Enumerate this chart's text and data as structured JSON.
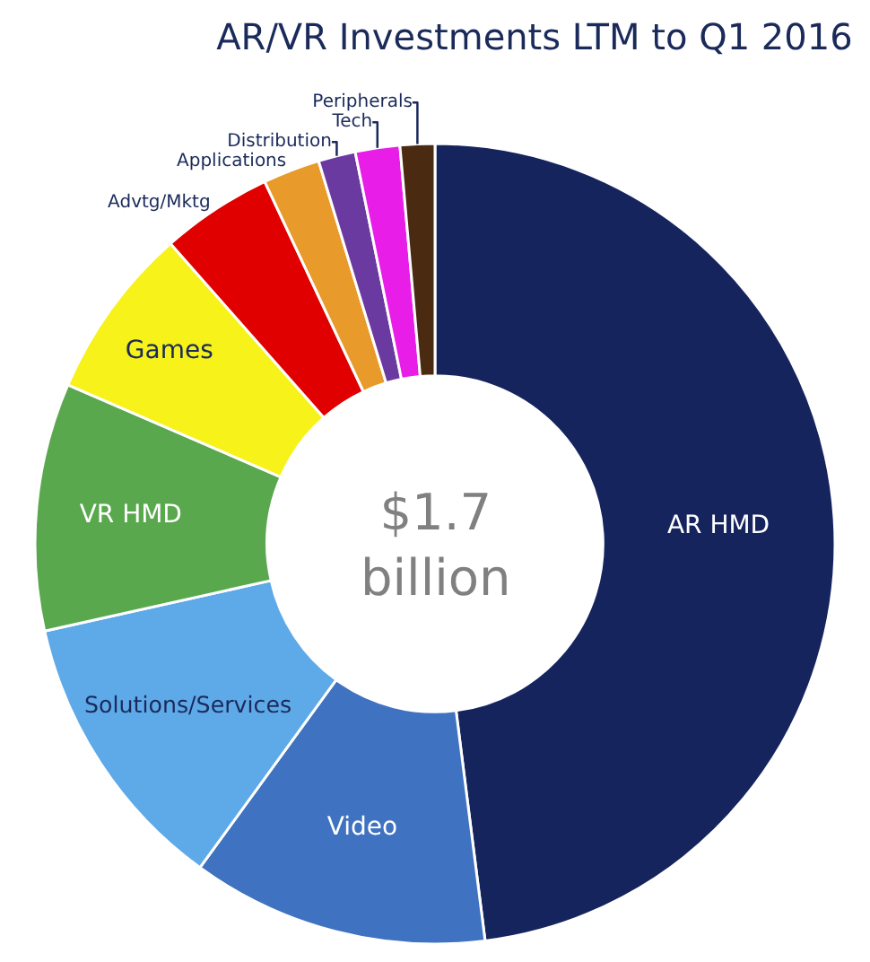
{
  "chart_data": {
    "type": "donut",
    "title": "AR/VR Investments LTM to Q1 2016",
    "categories": [
      "AR HMD",
      "Video",
      "Solutions/Services",
      "VR HMD",
      "Games",
      "Advtg/Mktg",
      "Applications",
      "Distribution",
      "Tech",
      "Peripherals"
    ],
    "values": [
      48,
      12,
      11.5,
      10,
      7,
      4.5,
      2.3,
      1.5,
      1.8,
      1.4
    ],
    "colors": [
      "#16245e",
      "#3f72c0",
      "#5ea9e8",
      "#5aa84e",
      "#f7f21a",
      "#e00000",
      "#e89a2a",
      "#6a3aa0",
      "#e81ee8",
      "#4a2a10"
    ],
    "annotations": [
      "$1.7\nbillion"
    ],
    "legend": false
  }
}
